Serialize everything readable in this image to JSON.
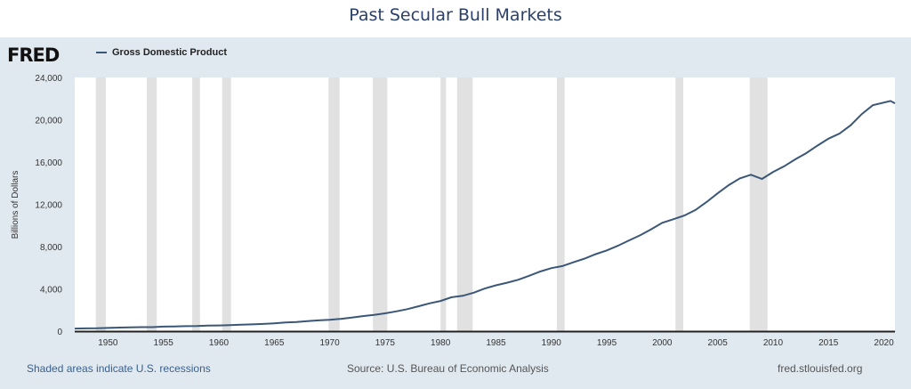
{
  "title": "Past Secular Bull Markets",
  "logo": "FRED",
  "footer": {
    "left": "Shaded areas indicate U.S. recessions",
    "center": "Source: U.S. Bureau of Economic Analysis",
    "right": "fred.stlouisfed.org"
  },
  "colors": {
    "line": "#3b5778",
    "recession": "#e1e1e1",
    "panel": "#e1e9f0"
  },
  "chart_data": {
    "type": "line",
    "ylabel": "Billions of Dollars",
    "xlim": [
      1947,
      2021
    ],
    "ylim": [
      0,
      24000
    ],
    "grid": false,
    "legend_placement": "top-left",
    "yticks": [
      "0",
      "4,000",
      "8,000",
      "12,000",
      "16,000",
      "20,000",
      "24,000"
    ],
    "xticks": [
      "1950",
      "1955",
      "1960",
      "1965",
      "1970",
      "1975",
      "1980",
      "1985",
      "1990",
      "1995",
      "2000",
      "2005",
      "2010",
      "2015",
      "2020"
    ],
    "recessions": [
      [
        1948.9,
        1949.8
      ],
      [
        1953.5,
        1954.4
      ],
      [
        1957.6,
        1958.3
      ],
      [
        1960.3,
        1961.1
      ],
      [
        1969.9,
        1970.9
      ],
      [
        1973.9,
        1975.2
      ],
      [
        1980.0,
        1980.5
      ],
      [
        1981.5,
        1982.9
      ],
      [
        1990.5,
        1991.2
      ],
      [
        2001.2,
        2001.9
      ],
      [
        2007.9,
        2009.5
      ]
    ],
    "series": [
      {
        "name": "Gross Domestic Product",
        "points": [
          [
            1947,
            243
          ],
          [
            1948,
            265
          ],
          [
            1949,
            268
          ],
          [
            1950,
            300
          ],
          [
            1951,
            340
          ],
          [
            1952,
            360
          ],
          [
            1953,
            380
          ],
          [
            1954,
            380
          ],
          [
            1955,
            426
          ],
          [
            1956,
            450
          ],
          [
            1957,
            474
          ],
          [
            1958,
            481
          ],
          [
            1959,
            522
          ],
          [
            1960,
            543
          ],
          [
            1961,
            563
          ],
          [
            1962,
            605
          ],
          [
            1963,
            638
          ],
          [
            1964,
            686
          ],
          [
            1965,
            743
          ],
          [
            1966,
            815
          ],
          [
            1967,
            862
          ],
          [
            1968,
            943
          ],
          [
            1969,
            1019
          ],
          [
            1970,
            1073
          ],
          [
            1971,
            1165
          ],
          [
            1972,
            1280
          ],
          [
            1973,
            1425
          ],
          [
            1974,
            1545
          ],
          [
            1975,
            1685
          ],
          [
            1976,
            1873
          ],
          [
            1977,
            2082
          ],
          [
            1978,
            2352
          ],
          [
            1979,
            2627
          ],
          [
            1980,
            2857
          ],
          [
            1981,
            3207
          ],
          [
            1982,
            3343
          ],
          [
            1983,
            3634
          ],
          [
            1984,
            4037
          ],
          [
            1985,
            4339
          ],
          [
            1986,
            4580
          ],
          [
            1987,
            4855
          ],
          [
            1988,
            5236
          ],
          [
            1989,
            5642
          ],
          [
            1990,
            5963
          ],
          [
            1991,
            6158
          ],
          [
            1992,
            6520
          ],
          [
            1993,
            6859
          ],
          [
            1994,
            7287
          ],
          [
            1995,
            7640
          ],
          [
            1996,
            8073
          ],
          [
            1997,
            8578
          ],
          [
            1998,
            9063
          ],
          [
            1999,
            9631
          ],
          [
            2000,
            10252
          ],
          [
            2001,
            10582
          ],
          [
            2002,
            10936
          ],
          [
            2003,
            11458
          ],
          [
            2004,
            12214
          ],
          [
            2005,
            13037
          ],
          [
            2006,
            13814
          ],
          [
            2007,
            14452
          ],
          [
            2008,
            14800
          ],
          [
            2009,
            14400
          ],
          [
            2010,
            15049
          ],
          [
            2011,
            15600
          ],
          [
            2012,
            16254
          ],
          [
            2013,
            16843
          ],
          [
            2014,
            17551
          ],
          [
            2015,
            18206
          ],
          [
            2016,
            18695
          ],
          [
            2017,
            19480
          ],
          [
            2018,
            20527
          ],
          [
            2019,
            21373
          ],
          [
            2020.6,
            21780
          ],
          [
            2021,
            21550
          ]
        ]
      }
    ]
  }
}
